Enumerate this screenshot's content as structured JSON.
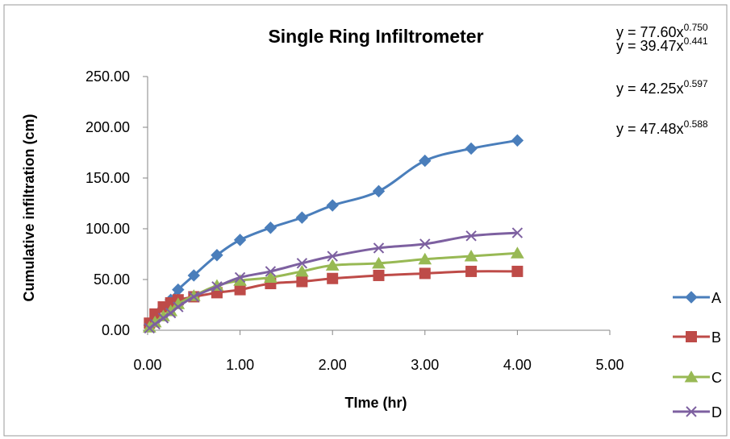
{
  "chart_data": {
    "type": "line",
    "title": "Single Ring Infiltrometer",
    "xlabel": "TIme (hr)",
    "ylabel": "Cumulative infiltration (cm)",
    "xlim": [
      0,
      5
    ],
    "ylim": [
      0,
      250
    ],
    "x_ticks": [
      "0.00",
      "1.00",
      "2.00",
      "3.00",
      "4.00",
      "5.00"
    ],
    "y_ticks": [
      "0.00",
      "50.00",
      "100.00",
      "150.00",
      "200.00",
      "250.00"
    ],
    "x_tick_values": [
      0,
      1,
      2,
      3,
      4,
      5
    ],
    "y_tick_values": [
      0,
      50,
      100,
      150,
      200,
      250
    ],
    "legend_position": "right",
    "grid": false,
    "series": [
      {
        "name": "A",
        "color": "#4a7ebb",
        "marker": "diamond",
        "x": [
          0.02,
          0.08,
          0.17,
          0.25,
          0.33,
          0.5,
          0.75,
          1.0,
          1.33,
          1.67,
          2.0,
          2.5,
          3.0,
          3.5,
          4.0
        ],
        "y": [
          5,
          12,
          22,
          30,
          40,
          54,
          74,
          89,
          101,
          111,
          123,
          137,
          167,
          179,
          187
        ]
      },
      {
        "name": "B",
        "color": "#be4b48",
        "marker": "square",
        "x": [
          0.02,
          0.08,
          0.17,
          0.25,
          0.33,
          0.5,
          0.75,
          1.0,
          1.33,
          1.67,
          2.0,
          2.5,
          3.0,
          3.5,
          4.0
        ],
        "y": [
          7,
          16,
          23,
          27,
          30,
          33,
          37,
          40,
          46,
          48,
          51,
          54,
          56,
          58,
          58
        ]
      },
      {
        "name": "C",
        "color": "#98b954",
        "marker": "triangle",
        "x": [
          0.02,
          0.08,
          0.17,
          0.25,
          0.33,
          0.5,
          0.75,
          1.0,
          1.33,
          1.67,
          2.0,
          2.5,
          3.0,
          3.5,
          4.0
        ],
        "y": [
          3,
          8,
          14,
          19,
          26,
          34,
          44,
          49,
          52,
          58,
          64,
          66,
          70,
          73,
          76
        ]
      },
      {
        "name": "D",
        "color": "#7d60a0",
        "marker": "x",
        "x": [
          0.02,
          0.08,
          0.17,
          0.25,
          0.33,
          0.5,
          0.75,
          1.0,
          1.33,
          1.67,
          2.0,
          2.5,
          3.0,
          3.5,
          4.0
        ],
        "y": [
          2,
          6,
          12,
          17,
          23,
          33,
          43,
          52,
          58,
          66,
          73,
          81,
          85,
          93,
          96
        ]
      }
    ],
    "equations": [
      {
        "base": "y = 77.60x",
        "exp": "0.750"
      },
      {
        "base": "y = 39.47x",
        "exp": "0.441"
      },
      {
        "base": "y = 42.25x",
        "exp": "0.597"
      },
      {
        "base": "y = 47.48x",
        "exp": "0.588"
      }
    ]
  }
}
